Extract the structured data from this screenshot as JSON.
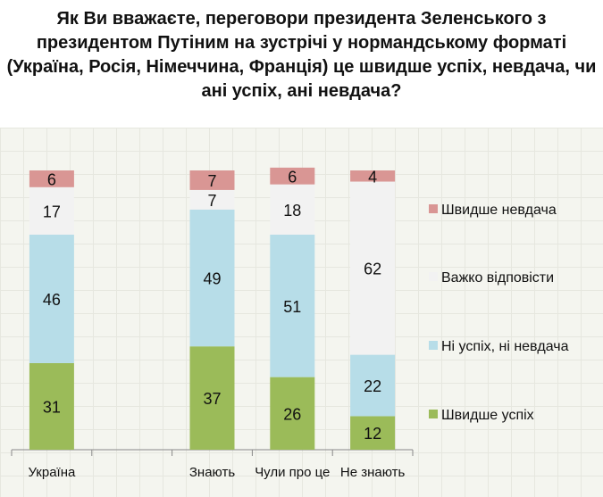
{
  "title": "Як Ви вважаєте, переговори президента Зеленського з президентом Путіним на зустрічі у нормандському форматі (Україна, Росія, Німеччина, Франція) це швидше успіх, невдача, чи ані успіх, ані невдача?",
  "chart_data": {
    "type": "bar",
    "stacked": true,
    "title": "Як Ви вважаєте, переговори президента Зеленського з президентом Путіним на зустрічі у нормандському форматі (Україна, Росія, Німеччина, Франція) це швидше успіх, невдача, чи ані успіх, ані невдача?",
    "categories": [
      "Україна",
      "",
      "Знають",
      "Чули про це",
      "Не знають"
    ],
    "ylim": [
      0,
      100
    ],
    "grid": false,
    "legend_position": "right",
    "series": [
      {
        "name": "Швидше успіх",
        "color": "#9bbb59",
        "values": [
          31,
          null,
          37,
          26,
          12
        ]
      },
      {
        "name": "Ні успіх, ні невдача",
        "color": "#b7dde8",
        "values": [
          46,
          null,
          49,
          51,
          22
        ]
      },
      {
        "name": "Важко відповісти",
        "color": "#f2f2f2",
        "values": [
          17,
          null,
          7,
          18,
          62
        ]
      },
      {
        "name": "Швидше невдача",
        "color": "#d99694",
        "values": [
          6,
          null,
          7,
          6,
          4
        ]
      }
    ],
    "legend_order": [
      "Швидше невдача",
      "Важко відповісти",
      "Ні успіх, ні невдача",
      "Швидше успіх"
    ]
  }
}
